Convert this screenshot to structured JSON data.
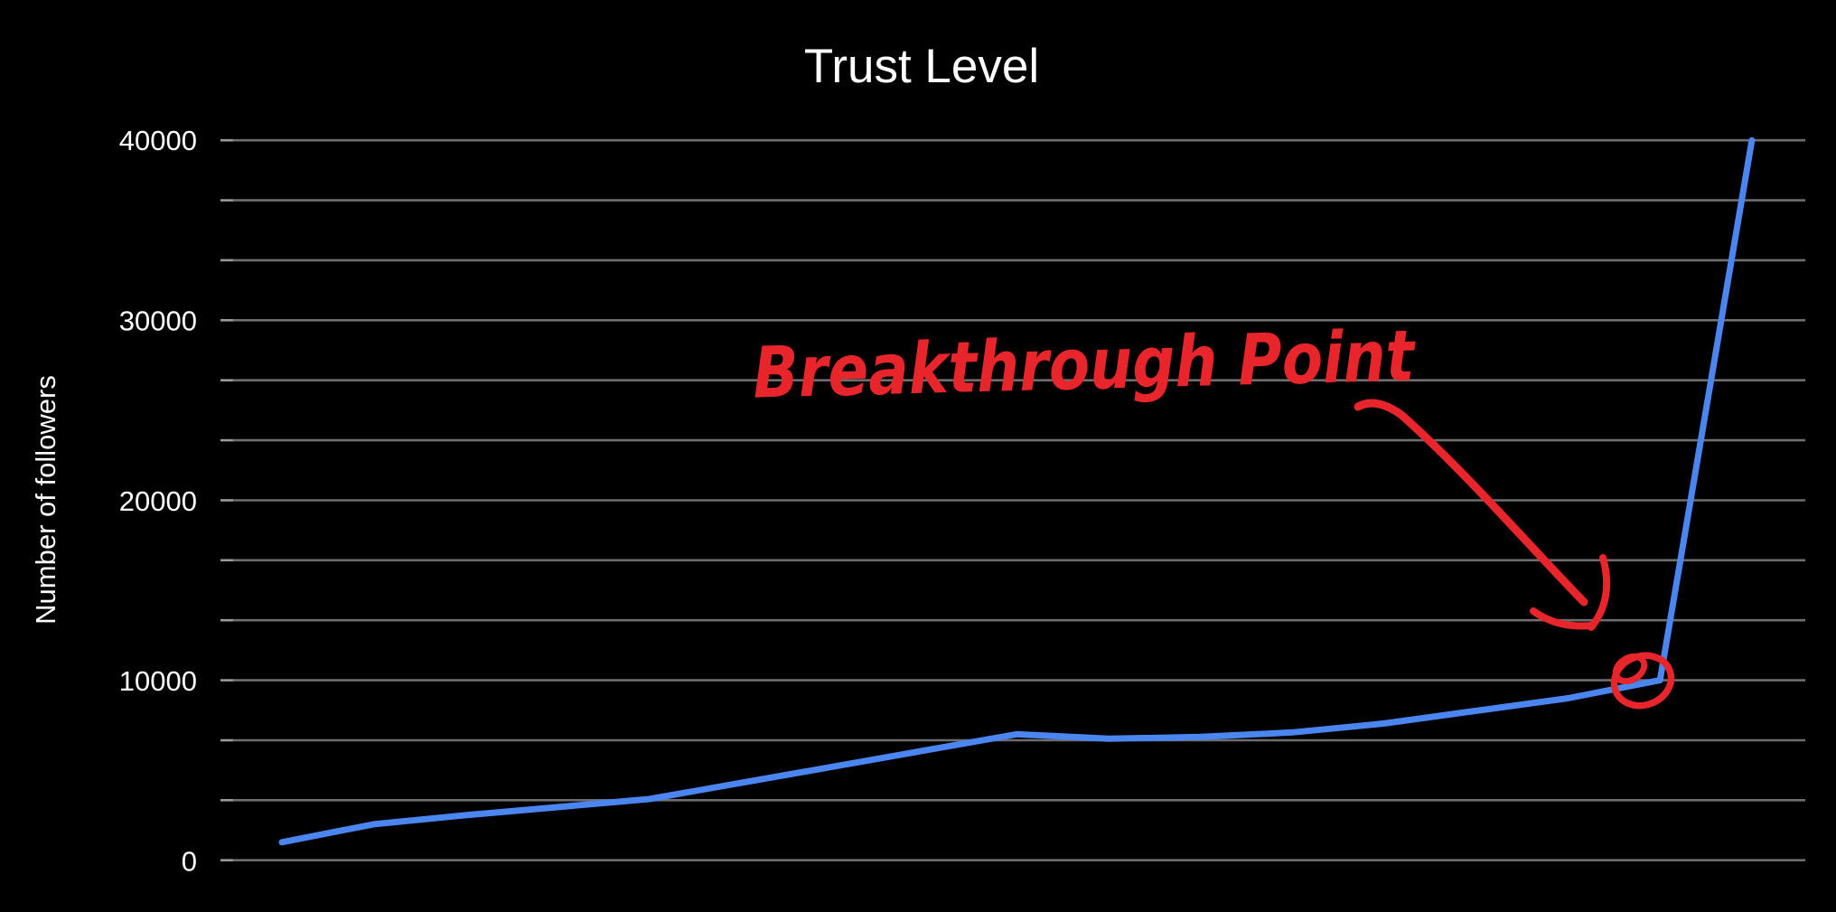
{
  "page": {
    "background": "#000000"
  },
  "colors": {
    "background": "#000000",
    "gridline": "#6e6e6e",
    "gridline_tick": "#9a9a9a",
    "text": "#ffffff",
    "series_blue": "#4a85f0",
    "annotation_red": "#e9252c"
  },
  "chart_data": {
    "type": "line",
    "title": "Trust Level",
    "xlabel": "",
    "ylabel": "Number of followers",
    "x": [
      1,
      2,
      3,
      4,
      5,
      6,
      7,
      8,
      9,
      10,
      11,
      12,
      13,
      14,
      15,
      16,
      17
    ],
    "x_tick_labels": [],
    "y_tick_labels": [
      "40000",
      "30000",
      "20000",
      "10000",
      "0"
    ],
    "y_tick_values": [
      40000,
      30000,
      20000,
      10000,
      0
    ],
    "ylim": [
      0,
      40000
    ],
    "y_major_step": 10000,
    "y_minor_step": 3333.33,
    "grid": "horizontal-only",
    "legend": "none",
    "theme": "dark",
    "series": [
      {
        "name": "Number of followers",
        "color": "#4a85f0",
        "values": [
          1000,
          2000,
          2500,
          2950,
          3400,
          4300,
          5200,
          6100,
          7000,
          6750,
          6850,
          7100,
          7600,
          8300,
          9000,
          10000,
          40000
        ]
      }
    ],
    "annotations": [
      {
        "text": "Breakthrough Point",
        "style": "handwritten",
        "color": "#e9252c",
        "elements": [
          "arrow",
          "circled-point"
        ],
        "target_point_index": 15,
        "target_value": 10000
      }
    ]
  }
}
